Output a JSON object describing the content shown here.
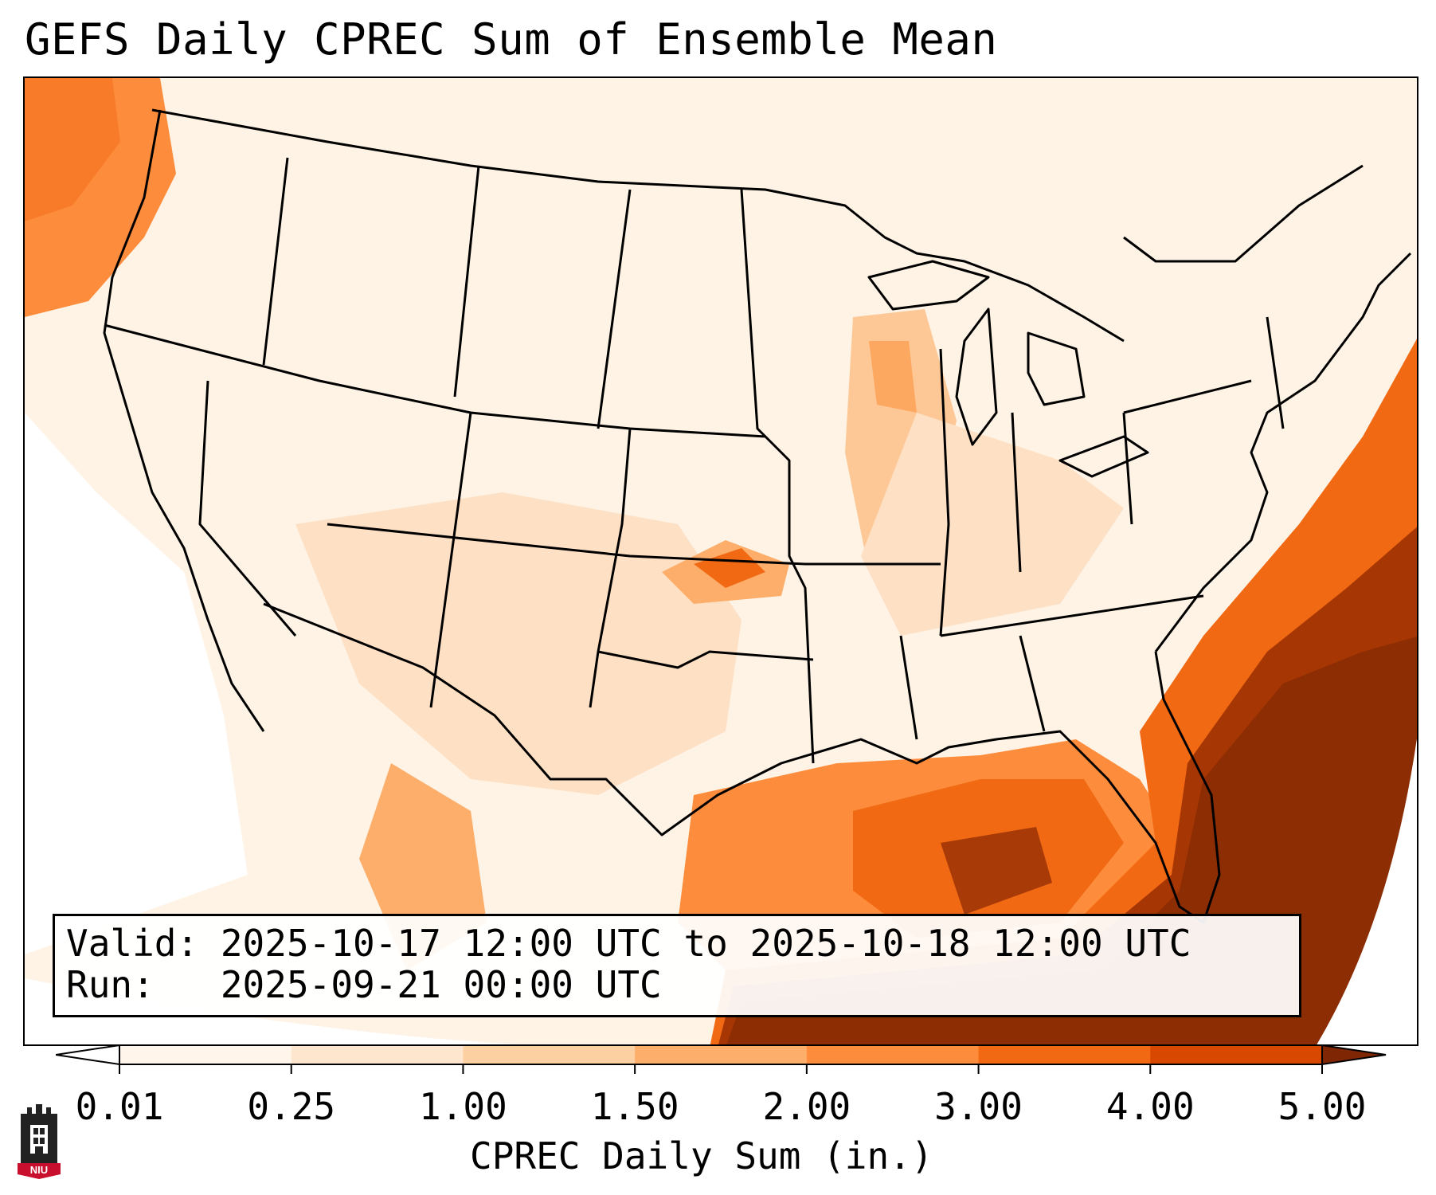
{
  "title": "GEFS Daily CPREC Sum of Ensemble Mean",
  "info": {
    "valid_line": "Valid: 2025-10-17 12:00 UTC to 2025-10-18 12:00 UTC",
    "run_line": "Run:   2025-09-21 00:00 UTC"
  },
  "colorbar": {
    "label": "CPREC Daily Sum (in.)",
    "ticks": [
      "0.01",
      "0.25",
      "1.00",
      "1.50",
      "2.00",
      "3.00",
      "4.00",
      "5.00"
    ],
    "colors": [
      "#fff5eb",
      "#fee6ce",
      "#fdd0a2",
      "#fdae6b",
      "#fd8d3c",
      "#f16913",
      "#d94801",
      "#8c2d04"
    ],
    "under_color": "#ffffff",
    "over_color": "#7f2704"
  },
  "logo": {
    "text": "NIU",
    "icon": "niu-tower-logo-icon"
  },
  "map": {
    "projection": "lambert-conformal-conus",
    "region": "Contiguous United States",
    "highlights": [
      {
        "area": "Pacific Northwest coast",
        "level": "2.00"
      },
      {
        "area": "Atlantic off Southeast coast",
        "level": "5.00"
      },
      {
        "area": "Gulf of Mexico",
        "level": "4.00"
      },
      {
        "area": "Southern Kansas / Oklahoma",
        "level": "2.00"
      },
      {
        "area": "Illinois / Wisconsin",
        "level": "1.50"
      }
    ]
  }
}
